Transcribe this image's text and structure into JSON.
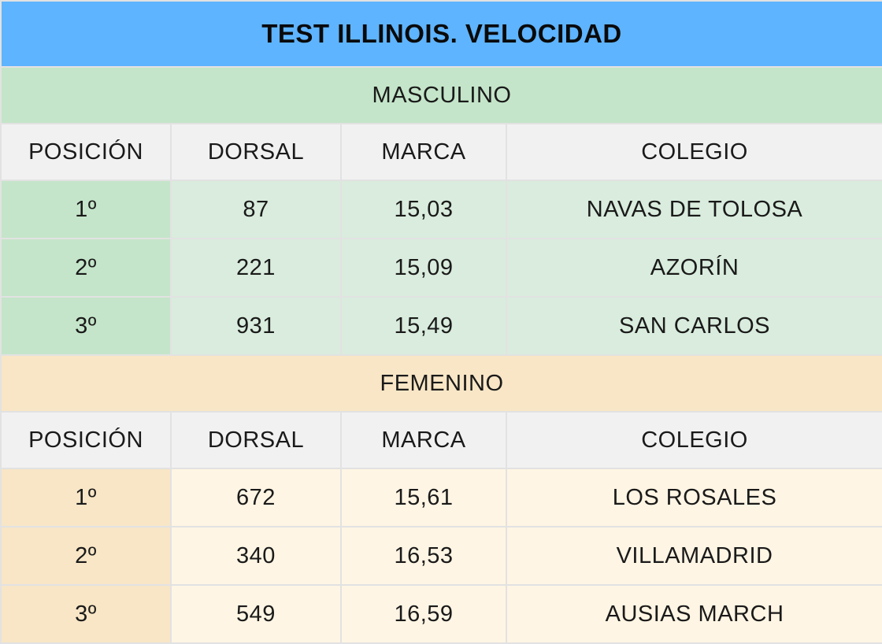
{
  "title": "TEST ILLINOIS. VELOCIDAD",
  "colors": {
    "title_bg": "#5eb4ff",
    "male_section_bg": "#c4e5c9",
    "male_row_bg": "#d9ecdd",
    "female_section_bg": "#f8e6c6",
    "female_row_bg": "#fff5e4",
    "header_bg": "#f1f1f1"
  },
  "columns": [
    "POSICIÓN",
    "DORSAL",
    "MARCA",
    "COLEGIO"
  ],
  "sections": [
    {
      "name": "MASCULINO",
      "rows": [
        {
          "position": "1º",
          "dorsal": "87",
          "mark": "15,03",
          "school": "NAVAS DE TOLOSA"
        },
        {
          "position": "2º",
          "dorsal": "221",
          "mark": "15,09",
          "school": "AZORÍN"
        },
        {
          "position": "3º",
          "dorsal": "931",
          "mark": "15,49",
          "school": "SAN CARLOS"
        }
      ]
    },
    {
      "name": "FEMENINO",
      "rows": [
        {
          "position": "1º",
          "dorsal": "672",
          "mark": "15,61",
          "school": "LOS ROSALES"
        },
        {
          "position": "2º",
          "dorsal": "340",
          "mark": "16,53",
          "school": "VILLAMADRID"
        },
        {
          "position": "3º",
          "dorsal": "549",
          "mark": "16,59",
          "school": "AUSIAS MARCH"
        }
      ]
    }
  ]
}
